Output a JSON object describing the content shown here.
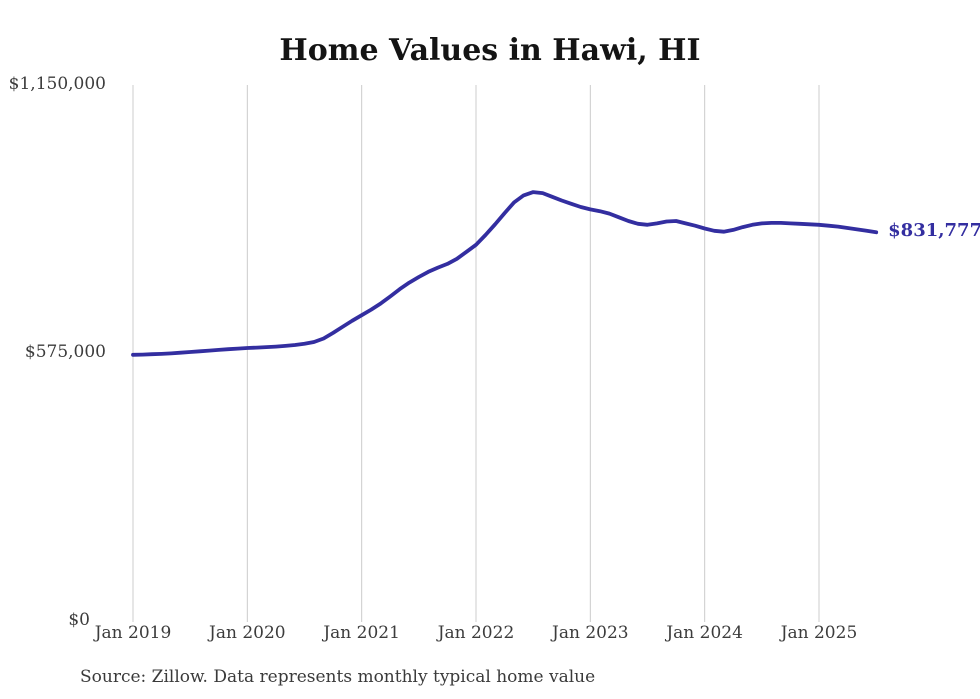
{
  "header": {
    "title": "Home Values in Hawi, HI"
  },
  "footer": {
    "source_note": "Source: Zillow. Data represents monthly typical home value"
  },
  "colors": {
    "line": "#332ea0",
    "grid": "#cccccc",
    "axis_text": "#3c3c3c",
    "title_text": "#141414",
    "end_label": "#332ea0",
    "background": "#ffffff"
  },
  "chart_data": {
    "type": "line",
    "title": "Home Values in Hawi, HI",
    "xlabel": "",
    "ylabel": "",
    "ylim": [
      0,
      1150000
    ],
    "grid": "vertical-only",
    "legend": "none",
    "end_label": "$831,777",
    "x_tick_labels": [
      "Jan 2019",
      "Jan 2020",
      "Jan 2021",
      "Jan 2022",
      "Jan 2023",
      "Jan 2024",
      "Jan 2025"
    ],
    "y_ticks": [
      {
        "label": "$0",
        "value": 0
      },
      {
        "label": "$575,000",
        "value": 575000
      },
      {
        "label": "$1,150,000",
        "value": 1150000
      }
    ],
    "x": [
      "2019-01",
      "2019-02",
      "2019-03",
      "2019-04",
      "2019-05",
      "2019-06",
      "2019-07",
      "2019-08",
      "2019-09",
      "2019-10",
      "2019-11",
      "2019-12",
      "2020-01",
      "2020-02",
      "2020-03",
      "2020-04",
      "2020-05",
      "2020-06",
      "2020-07",
      "2020-08",
      "2020-09",
      "2020-10",
      "2020-11",
      "2020-12",
      "2021-01",
      "2021-02",
      "2021-03",
      "2021-04",
      "2021-05",
      "2021-06",
      "2021-07",
      "2021-08",
      "2021-09",
      "2021-10",
      "2021-11",
      "2021-12",
      "2022-01",
      "2022-02",
      "2022-03",
      "2022-04",
      "2022-05",
      "2022-06",
      "2022-07",
      "2022-08",
      "2022-09",
      "2022-10",
      "2022-11",
      "2022-12",
      "2023-01",
      "2023-02",
      "2023-03",
      "2023-04",
      "2023-05",
      "2023-06",
      "2023-07",
      "2023-08",
      "2023-09",
      "2023-10",
      "2023-11",
      "2023-12",
      "2024-01",
      "2024-02",
      "2024-03",
      "2024-04",
      "2024-05",
      "2024-06",
      "2024-07",
      "2024-08",
      "2024-09",
      "2024-10",
      "2024-11",
      "2024-12",
      "2025-01",
      "2025-02",
      "2025-03",
      "2025-04",
      "2025-05",
      "2025-06",
      "2025-07"
    ],
    "series": [
      {
        "name": "Typical home value",
        "values": [
          569000,
          569500,
          570200,
          571000,
          572000,
          573500,
          575000,
          576500,
          578000,
          579500,
          581000,
          582300,
          583500,
          584500,
          585500,
          586500,
          588000,
          590000,
          592500,
          596500,
          604000,
          616000,
          629000,
          642000,
          654000,
          666000,
          679000,
          694000,
          710000,
          724000,
          736000,
          747000,
          756000,
          764000,
          775000,
          790000,
          805000,
          826000,
          849000,
          873000,
          896000,
          911000,
          918000,
          916000,
          908000,
          900000,
          893000,
          886000,
          881000,
          877000,
          872000,
          864000,
          856000,
          850000,
          848000,
          851000,
          855000,
          856000,
          851000,
          846000,
          840000,
          835000,
          833000,
          837000,
          843000,
          848000,
          851000,
          852000,
          852000,
          851000,
          850000,
          849000,
          848000,
          846000,
          844000,
          841000,
          838000,
          835000,
          831777
        ]
      }
    ]
  }
}
